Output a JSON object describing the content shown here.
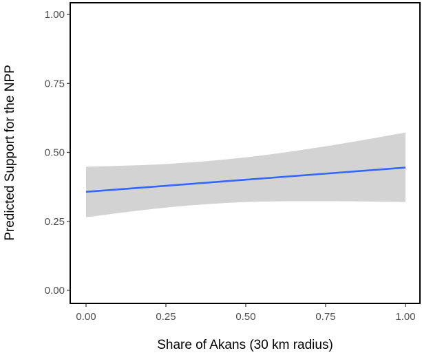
{
  "chart_data": {
    "type": "line",
    "title": "",
    "xlabel": "Share of Akans (30 km radius)",
    "ylabel": "Predicted Support for the NPP",
    "xlim": [
      0,
      1
    ],
    "ylim": [
      0,
      1
    ],
    "x_ticks": [
      0,
      0.25,
      0.5,
      0.75,
      1
    ],
    "y_ticks": [
      0,
      0.25,
      0.5,
      0.75,
      1
    ],
    "x_tick_labels": [
      "0.00",
      "0.25",
      "0.50",
      "0.75",
      "1.00"
    ],
    "y_tick_labels": [
      "0.00",
      "0.25",
      "0.50",
      "0.75",
      "1.00"
    ],
    "grid": false,
    "series": [
      {
        "x": [
          0,
          0.25,
          0.5,
          0.75,
          1
        ],
        "y": [
          0.357,
          0.379,
          0.401,
          0.423,
          0.445
        ],
        "ci_lower": [
          0.265,
          0.3,
          0.32,
          0.323,
          0.32
        ],
        "ci_upper": [
          0.448,
          0.458,
          0.482,
          0.522,
          0.572
        ]
      }
    ],
    "colors": {
      "line": "#3366ff",
      "ribbon": "#d3d3d3"
    }
  }
}
